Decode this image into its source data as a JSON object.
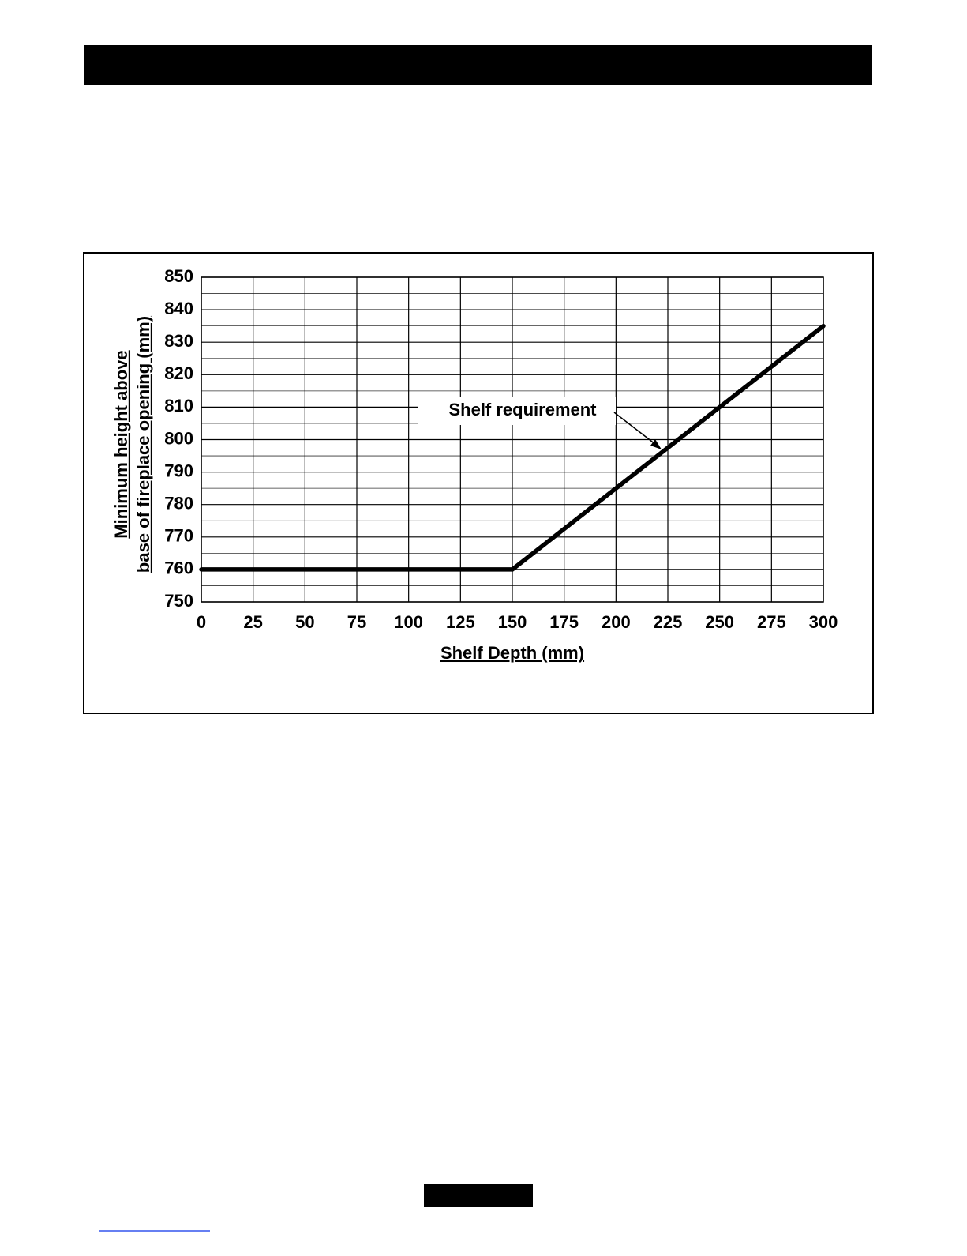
{
  "chart_data": {
    "type": "line",
    "x": [
      0,
      150,
      300
    ],
    "series": [
      {
        "name": "Shelf requirement",
        "color": "#000000",
        "values": [
          760,
          760,
          835
        ]
      }
    ],
    "xlim": [
      0,
      300
    ],
    "xticks": [
      0,
      25,
      50,
      75,
      100,
      125,
      150,
      175,
      200,
      225,
      250,
      275,
      300
    ],
    "ylim": [
      750,
      850
    ],
    "yticks": [
      750,
      760,
      770,
      780,
      790,
      800,
      810,
      820,
      830,
      840,
      850
    ],
    "xlabel": "Shelf Depth (mm)",
    "ylabel": [
      "Minimum height above",
      "base of fireplace opening (mm)"
    ],
    "grid": true
  }
}
